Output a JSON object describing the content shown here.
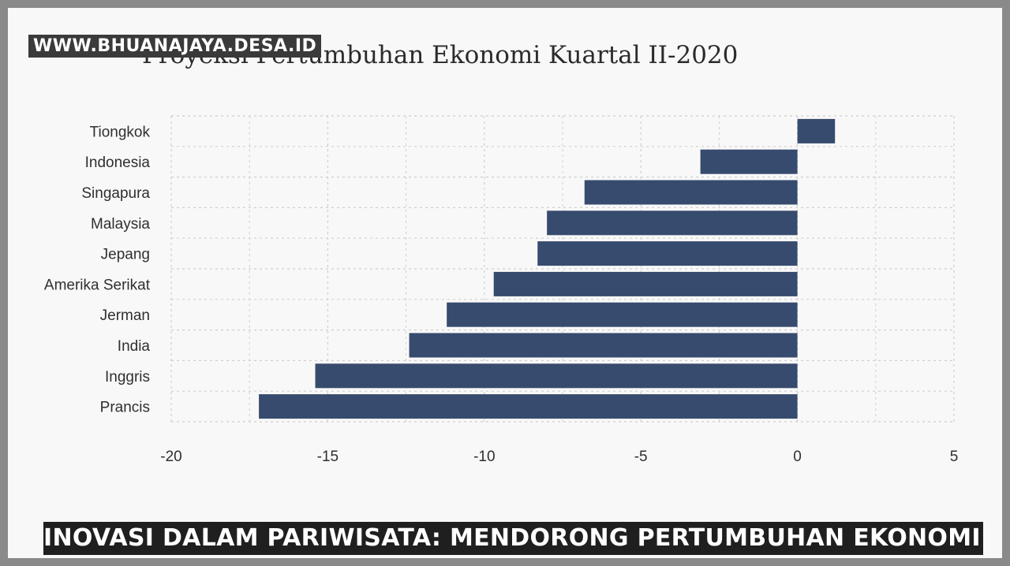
{
  "watermark": "WWW.BHUANAJAYA.DESA.ID",
  "caption": "INOVASI DALAM PARIWISATA: MENDORONG PERTUMBUHAN EKONOMI LOKAL",
  "colors": {
    "bar": "#374b6e",
    "grid": "#cfcfcf",
    "background": "#f8f8f8"
  },
  "chart_data": {
    "type": "bar",
    "orientation": "horizontal",
    "title": "Proyeksi Pertumbuhan Ekonomi Kuartal II-2020",
    "xlabel": "",
    "ylabel": "",
    "xlim": [
      -20,
      5
    ],
    "xticks": [
      "-20",
      "-15",
      "-10",
      "-5",
      "0",
      "5"
    ],
    "grid": true,
    "legend": "none",
    "categories": [
      "Tiongkok",
      "Indonesia",
      "Singapura",
      "Malaysia",
      "Jepang",
      "Amerika Serikat",
      "Jerman",
      "India",
      "Inggris",
      "Prancis"
    ],
    "values": [
      1.2,
      -3.1,
      -6.8,
      -8.0,
      -8.3,
      -9.7,
      -11.2,
      -12.4,
      -15.4,
      -17.2
    ]
  }
}
